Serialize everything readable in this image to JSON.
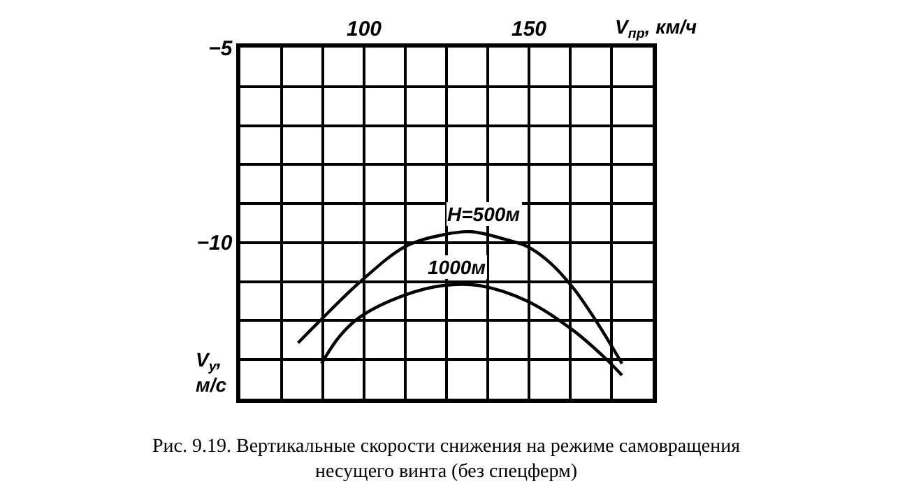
{
  "chart_data": {
    "type": "line",
    "xlabel": "V$_{пр}$, км/ч",
    "ylabel": "V$_{y}$, м/с",
    "xlim": [
      62.5,
      187.5
    ],
    "xticks": [
      {
        "value": 75,
        "label": null
      },
      {
        "value": 87.5,
        "label": null
      },
      100,
      {
        "value": 112.5,
        "label": null
      },
      {
        "value": 125,
        "label": null
      },
      {
        "value": 137.5,
        "label": null
      },
      150,
      {
        "value": 162.5,
        "label": null
      },
      {
        "value": 175,
        "label": null
      }
    ],
    "ylim": [
      -14,
      -5
    ],
    "yticks": [
      -5,
      {
        "value": -6,
        "label": null
      },
      {
        "value": -7,
        "label": null
      },
      {
        "value": -8,
        "label": null
      },
      {
        "value": -9,
        "label": null
      },
      -10,
      {
        "value": -11,
        "label": null
      },
      {
        "value": -12,
        "label": null
      },
      {
        "value": -13,
        "label": null
      }
    ],
    "grid": true,
    "legend": false,
    "marker": "none",
    "line_style": "solid",
    "series": [
      {
        "name": "H=500м",
        "color": "#000000",
        "x": [
          80,
          86.2,
          98.9,
          112.5,
          123.9,
          132.4,
          143.4,
          149.5,
          156.2,
          163.4,
          170.6,
          178.2
        ],
        "values": [
          -12.57,
          -12.04,
          -11.0,
          -10.1,
          -9.8,
          -9.72,
          -9.93,
          -10.1,
          -10.5,
          -11.16,
          -12.04,
          -13.1
        ]
      },
      {
        "name": "1000м",
        "color": "#000000",
        "x": [
          87.1,
          92.6,
          98.9,
          112.5,
          123.9,
          134.9,
          149.5,
          163.4,
          173.1,
          178.2
        ],
        "values": [
          -13.1,
          -12.4,
          -11.9,
          -11.34,
          -11.1,
          -11.1,
          -11.5,
          -12.25,
          -12.96,
          -13.4
        ]
      }
    ],
    "annotations": [
      "Рис. 9.19. Вертикальные скорости снижения на режиме самовращения несущего винта (без спецферм)"
    ]
  }
}
